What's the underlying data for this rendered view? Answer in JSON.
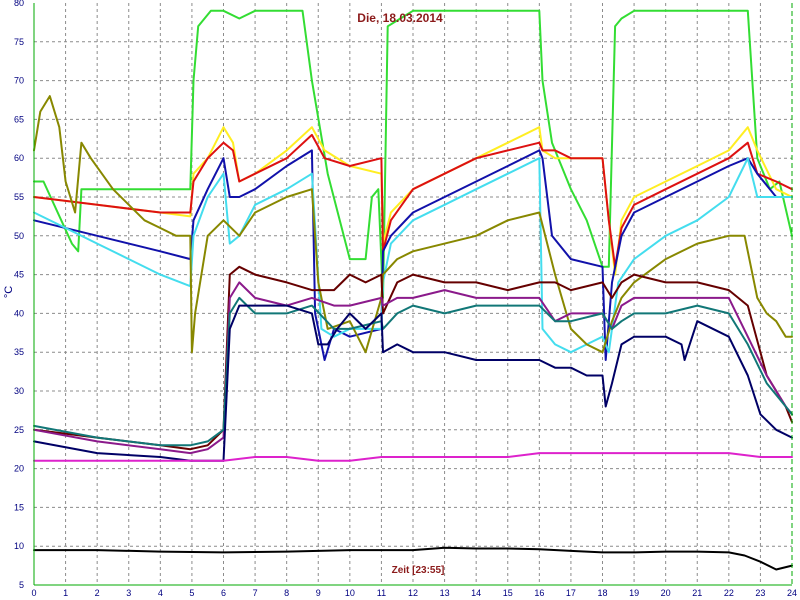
{
  "chart_data": {
    "type": "line",
    "title": "Die, 18.03.2014",
    "xlabel": "Zeit [23:55]",
    "ylabel": "°C",
    "xlim": [
      0,
      24
    ],
    "ylim": [
      5,
      80
    ],
    "x_ticks": [
      "0",
      "1",
      "2",
      "3",
      "4",
      "5",
      "6",
      "7",
      "8",
      "9",
      "10",
      "11",
      "12",
      "13",
      "14",
      "15",
      "16",
      "17",
      "18",
      "19",
      "20",
      "21",
      "22",
      "23",
      "24"
    ],
    "y_ticks": [
      "5",
      "10",
      "15",
      "20",
      "25",
      "30",
      "35",
      "40",
      "45",
      "50",
      "55",
      "60",
      "65",
      "70",
      "75",
      "80"
    ],
    "grid": true,
    "series": [
      {
        "color": "#33dd33",
        "x": [
          0,
          0.3,
          1.2,
          1.4,
          1.5,
          2,
          3,
          4,
          4.95,
          5.05,
          5.2,
          5.6,
          6,
          6.5,
          7,
          8.5,
          8.8,
          9.3,
          10,
          10.5,
          10.7,
          10.9,
          11.05,
          11.2,
          11.6,
          12,
          14,
          15,
          16,
          16.1,
          16.4,
          17,
          17.5,
          18,
          18.2,
          18.4,
          18.6,
          19,
          20,
          22,
          22.6,
          22.9,
          23.3,
          23.6,
          24
        ],
        "y": [
          57,
          57,
          49,
          48,
          56,
          56,
          56,
          56,
          56,
          70,
          77,
          79,
          79,
          78,
          79,
          79,
          70,
          58,
          47,
          47,
          55,
          56,
          42,
          77,
          78,
          79,
          79,
          79,
          79,
          70,
          62,
          56,
          52,
          46,
          46,
          77,
          78,
          79,
          79,
          79,
          79,
          60,
          56,
          57,
          50
        ]
      },
      {
        "color": "#ffee22",
        "x": [
          0,
          2,
          4,
          4.95,
          5.05,
          5.5,
          6,
          6.3,
          6.5,
          7,
          8,
          8.8,
          9.2,
          10,
          11,
          11.05,
          11.3,
          12,
          13,
          14,
          15,
          16,
          16.1,
          16.5,
          17,
          18,
          18.2,
          18.4,
          18.6,
          19,
          20,
          21,
          22,
          22.6,
          22.9,
          23.5,
          24
        ],
        "y": [
          55,
          54,
          53,
          52.5,
          58,
          60,
          64,
          62,
          57,
          58,
          61,
          64,
          61,
          59,
          58,
          49,
          53,
          56,
          58,
          60,
          62,
          64,
          61,
          60,
          60,
          60,
          52,
          45,
          52,
          55,
          57,
          59,
          61,
          64,
          61,
          56,
          55
        ]
      },
      {
        "color": "#dd1111",
        "x": [
          0,
          2,
          4,
          4.95,
          5.05,
          5.5,
          6,
          6.3,
          6.5,
          7,
          8,
          8.8,
          9.2,
          10,
          11,
          11.05,
          11.3,
          12,
          13,
          14,
          15,
          16,
          16.1,
          16.5,
          17,
          18,
          18.2,
          18.4,
          18.6,
          19,
          20,
          21,
          22,
          22.6,
          22.9,
          23.5,
          24
        ],
        "y": [
          55,
          54,
          53,
          53,
          57,
          60,
          62,
          61,
          57,
          58,
          60,
          63,
          60,
          59,
          60,
          48,
          52,
          56,
          58,
          60,
          61,
          62,
          61,
          61,
          60,
          60,
          52,
          46,
          51,
          54,
          56,
          58,
          60,
          62,
          58,
          57,
          56
        ]
      },
      {
        "color": "#1111aa",
        "x": [
          0,
          2,
          4,
          4.95,
          5.05,
          5.5,
          6,
          6.2,
          6.5,
          7,
          8,
          8.8,
          8.9,
          9.2,
          9.5,
          10,
          11,
          11.05,
          11.3,
          12,
          13,
          14,
          15,
          16,
          16.1,
          16.4,
          17,
          18,
          18.1,
          18.3,
          18.6,
          19,
          20,
          21,
          22,
          22.6,
          22.9,
          23.5,
          24
        ],
        "y": [
          52,
          50,
          48,
          47,
          52,
          56,
          60,
          55,
          55,
          56,
          59,
          61,
          40,
          34,
          38,
          37,
          38,
          48,
          50,
          53,
          55,
          57,
          59,
          61,
          60,
          50,
          47,
          46,
          34,
          44,
          50,
          53,
          55,
          57,
          59,
          60,
          58,
          55,
          55
        ]
      },
      {
        "color": "#44ddee",
        "x": [
          0,
          1,
          2,
          3,
          4,
          4.95,
          5.05,
          5.5,
          6,
          6.2,
          6.5,
          7,
          8,
          8.8,
          9.1,
          9.5,
          10,
          11,
          11.05,
          11.3,
          12,
          13,
          14,
          15,
          16,
          16.1,
          16.5,
          17,
          17.5,
          18,
          18.2,
          18.5,
          19,
          20,
          21,
          22,
          22.6,
          22.9,
          23.5,
          24
        ],
        "y": [
          53,
          51,
          49,
          47,
          45,
          43.5,
          50,
          55,
          58,
          49,
          50,
          54,
          56,
          58,
          38,
          37,
          38,
          38,
          44,
          49,
          52,
          54,
          56,
          58,
          60,
          38,
          36,
          35,
          36,
          37,
          35,
          44,
          47,
          50,
          52,
          55,
          60,
          55,
          55,
          55
        ]
      },
      {
        "color": "#888800",
        "x": [
          0,
          0.2,
          0.5,
          0.8,
          1,
          1.3,
          1.5,
          1.8,
          2.5,
          3,
          3.5,
          4,
          4.5,
          4.95,
          5,
          5.1,
          5.5,
          6,
          6.5,
          7,
          8,
          8.8,
          9,
          9.3,
          10,
          10.5,
          11,
          11.05,
          11.5,
          12,
          14,
          15,
          16,
          16.5,
          17,
          17.5,
          18,
          18.3,
          18.6,
          19,
          20,
          21,
          22,
          22.5,
          22.9,
          23.2,
          23.5,
          23.8,
          24
        ],
        "y": [
          61,
          66,
          68,
          64,
          57,
          53,
          62,
          60,
          56,
          54,
          52,
          51,
          50,
          50,
          35,
          40,
          50,
          52,
          50,
          53,
          55,
          56,
          44,
          38,
          39,
          35,
          42,
          45,
          47,
          48,
          50,
          52,
          53,
          45,
          38,
          36,
          35,
          39,
          42,
          44,
          47,
          49,
          50,
          50,
          42,
          40,
          39,
          37,
          37
        ]
      },
      {
        "color": "#660000",
        "x": [
          0,
          2,
          4,
          4.95,
          5.5,
          6,
          6.2,
          6.5,
          7,
          8,
          8.8,
          9.5,
          10,
          10.5,
          11,
          11.05,
          11.5,
          12,
          13,
          14,
          15,
          16,
          16.5,
          17,
          18,
          18.3,
          18.6,
          19,
          20,
          21,
          22,
          22.6,
          23.2,
          23.8,
          24
        ],
        "y": [
          25,
          24,
          23,
          22.5,
          23,
          25,
          45,
          46,
          45,
          44,
          43,
          43,
          45,
          44,
          45,
          40,
          44,
          45,
          44,
          44,
          43,
          44,
          44,
          43,
          44,
          42,
          44,
          45,
          44,
          44,
          43,
          41,
          32,
          28,
          26
        ]
      },
      {
        "color": "#8b1a8b",
        "x": [
          0,
          2,
          4,
          4.95,
          5.5,
          6,
          6.2,
          6.5,
          7,
          8,
          8.8,
          9.5,
          10,
          11,
          11.05,
          11.5,
          12,
          13,
          14,
          15,
          16,
          16.5,
          17,
          18,
          18.3,
          18.6,
          19,
          20,
          21,
          22,
          22.6,
          23.2,
          23.8,
          24
        ],
        "y": [
          25,
          23.5,
          22.5,
          22,
          22.5,
          24,
          42,
          44,
          42,
          41,
          42,
          41,
          41,
          42,
          41,
          42,
          42,
          43,
          42,
          42,
          42,
          39,
          40,
          40,
          38,
          41,
          42,
          42,
          42,
          42,
          37,
          32,
          28,
          27
        ]
      },
      {
        "color": "#117777",
        "x": [
          0,
          2,
          4,
          4.95,
          5.5,
          6,
          6.2,
          6.5,
          7,
          8,
          8.8,
          9.5,
          10,
          11,
          11.05,
          11.5,
          12,
          13,
          14,
          15,
          16,
          16.5,
          17,
          18,
          18.3,
          18.6,
          19,
          20,
          21,
          22,
          22.6,
          23.2,
          23.8,
          24
        ],
        "y": [
          25.5,
          24,
          23,
          23,
          23.5,
          25,
          40,
          42,
          40,
          40,
          41,
          38,
          38,
          39,
          38,
          40,
          41,
          40,
          41,
          41,
          41,
          39,
          39,
          40,
          38,
          39,
          40,
          40,
          41,
          40,
          36,
          31,
          28,
          27
        ]
      },
      {
        "color": "#000066",
        "x": [
          0,
          2,
          4,
          4.95,
          5.5,
          6,
          6.2,
          6.5,
          7,
          8,
          8.8,
          9,
          9.3,
          9.6,
          10,
          10.5,
          11,
          11.05,
          11.5,
          12,
          13,
          14,
          15,
          16,
          16.5,
          17,
          17.5,
          18,
          18.1,
          18.3,
          18.6,
          19,
          20,
          20.5,
          20.6,
          21,
          22,
          22.6,
          23,
          23.5,
          24
        ],
        "y": [
          23.5,
          22,
          21.5,
          21,
          21,
          21,
          38,
          41,
          41,
          41,
          40,
          36,
          36,
          38,
          40,
          38,
          40,
          35,
          36,
          35,
          35,
          34,
          34,
          34,
          33,
          33,
          32,
          32,
          28,
          31,
          36,
          37,
          37,
          36,
          34,
          39,
          37,
          32,
          27,
          25,
          24
        ]
      },
      {
        "color": "#dd22cc",
        "x": [
          0,
          2,
          4,
          5,
          6,
          7,
          8,
          9,
          10,
          11,
          12,
          13,
          14,
          15,
          16,
          17,
          18,
          19,
          20,
          21,
          22,
          23,
          24
        ],
        "y": [
          21,
          21,
          21,
          21,
          21,
          21.5,
          21.5,
          21,
          21,
          21.5,
          21.5,
          21.5,
          21.5,
          21.5,
          22,
          22,
          22,
          22,
          22,
          22,
          22,
          21.5,
          21.5
        ]
      },
      {
        "color": "#000000",
        "x": [
          0,
          2,
          4,
          6,
          8,
          10,
          12,
          13,
          14,
          15,
          16,
          17,
          18,
          19,
          20,
          21,
          22,
          22.5,
          23,
          23.5,
          24
        ],
        "y": [
          9.5,
          9.5,
          9.3,
          9.2,
          9.3,
          9.5,
          9.5,
          9.8,
          9.7,
          9.7,
          9.6,
          9.4,
          9.2,
          9.2,
          9.3,
          9.3,
          9.2,
          8.8,
          8,
          7,
          7.5
        ]
      }
    ]
  }
}
